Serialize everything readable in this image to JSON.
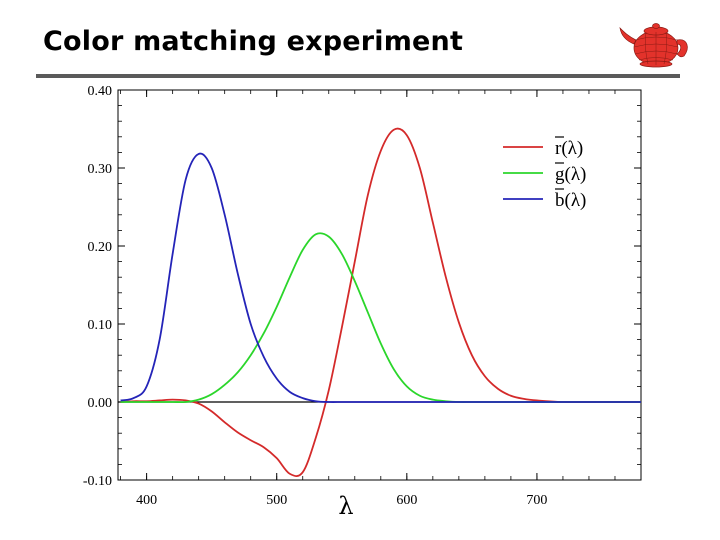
{
  "slide": {
    "title": "Color matching experiment"
  },
  "logo": {
    "icon": "teapot-icon",
    "color": "#e3322b"
  },
  "chart_data": {
    "type": "line",
    "title": "",
    "xlabel": "λ",
    "ylabel": "",
    "xlim": [
      378,
      780
    ],
    "ylim": [
      -0.1,
      0.4
    ],
    "grid": false,
    "legend_position": "top-right",
    "x_ticks": [
      400,
      500,
      600,
      700
    ],
    "y_ticks": [
      -0.1,
      0.0,
      0.1,
      0.2,
      0.3,
      0.4
    ],
    "x_tick_labels": [
      "400",
      "500",
      "600",
      "700"
    ],
    "y_tick_labels": [
      "-0.10",
      "0.00",
      "0.10",
      "0.20",
      "0.30",
      "0.40"
    ],
    "zero_line": true,
    "x": [
      380,
      390,
      400,
      410,
      420,
      430,
      440,
      450,
      460,
      470,
      480,
      490,
      500,
      510,
      520,
      530,
      540,
      550,
      560,
      570,
      580,
      590,
      600,
      610,
      620,
      630,
      640,
      650,
      660,
      670,
      680,
      690,
      700,
      720,
      750,
      780
    ],
    "series": [
      {
        "name": "r̄(λ)",
        "label_base": "r",
        "label_suffix": "(λ)",
        "color": "#d42a2a",
        "values": [
          0.0,
          0.001,
          0.001,
          0.002,
          0.003,
          0.002,
          -0.002,
          -0.012,
          -0.026,
          -0.039,
          -0.049,
          -0.058,
          -0.072,
          -0.092,
          -0.09,
          -0.046,
          0.015,
          0.095,
          0.18,
          0.265,
          0.322,
          0.349,
          0.342,
          0.3,
          0.23,
          0.16,
          0.102,
          0.06,
          0.033,
          0.017,
          0.008,
          0.004,
          0.002,
          0.0,
          0.0,
          0.0
        ]
      },
      {
        "name": "ḡ(λ)",
        "label_base": "g",
        "label_suffix": "(λ)",
        "color": "#2bd62b",
        "values": [
          0.0,
          0.0,
          0.0,
          0.0,
          0.0,
          0.0,
          0.003,
          0.01,
          0.022,
          0.038,
          0.06,
          0.088,
          0.122,
          0.16,
          0.195,
          0.215,
          0.212,
          0.19,
          0.155,
          0.115,
          0.075,
          0.042,
          0.02,
          0.008,
          0.003,
          0.001,
          0.0,
          0.0,
          0.0,
          0.0,
          0.0,
          0.0,
          0.0,
          0.0,
          0.0,
          0.0
        ]
      },
      {
        "name": "b̄(λ)",
        "label_base": "b",
        "label_suffix": "(λ)",
        "color": "#2424b8",
        "values": [
          0.002,
          0.005,
          0.02,
          0.08,
          0.19,
          0.285,
          0.318,
          0.3,
          0.24,
          0.165,
          0.1,
          0.058,
          0.03,
          0.013,
          0.005,
          0.001,
          0.0,
          0.0,
          0.0,
          0.0,
          0.0,
          0.0,
          0.0,
          0.0,
          0.0,
          0.0,
          0.0,
          0.0,
          0.0,
          0.0,
          0.0,
          0.0,
          0.0,
          0.0,
          0.0,
          0.0
        ]
      }
    ]
  }
}
